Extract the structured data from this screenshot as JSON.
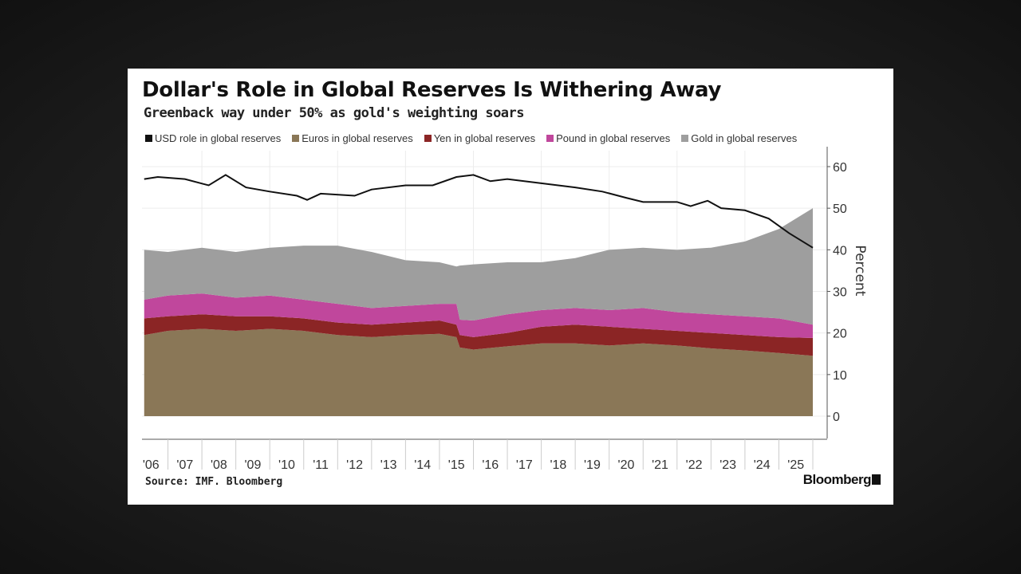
{
  "chart_data": {
    "type": "area",
    "stacked": true,
    "title": "Dollar's Role in Global Reserves Is Withering Away",
    "subtitle": "Greenback way under 50% as gold's weighting soars",
    "ylabel": "Percent",
    "xlabel": "",
    "ylim": [
      0,
      60
    ],
    "yticks": [
      0,
      10,
      20,
      30,
      40,
      50,
      60
    ],
    "xlim": [
      2006,
      2026
    ],
    "xtick_labels": [
      "'06",
      "'07",
      "'08",
      "'09",
      "'10",
      "'11",
      "'12",
      "'13",
      "'14",
      "'15",
      "'16",
      "'17",
      "'18",
      "'19",
      "'20",
      "'21",
      "'22",
      "'23",
      "'24",
      "'25"
    ],
    "grid": true,
    "legend_position": "top",
    "x": [
      2006.3,
      2007,
      2008,
      2009,
      2010,
      2011,
      2012,
      2013,
      2014,
      2015,
      2015.5,
      2015.6,
      2016,
      2017,
      2018,
      2019,
      2020,
      2021,
      2022,
      2023,
      2024,
      2025,
      2026
    ],
    "series": [
      {
        "name": "Euros in global reserves",
        "color": "#8a7757",
        "values": [
          19.5,
          20.5,
          21,
          20.5,
          21,
          20.5,
          19.5,
          19,
          19.5,
          19.8,
          19,
          16.5,
          16,
          16.8,
          17.5,
          17.5,
          17,
          17.5,
          17,
          16.3,
          15.8,
          15.2,
          14.5
        ]
      },
      {
        "name": "Yen in global reserves",
        "color": "#8b2525",
        "values": [
          4.0,
          3.5,
          3.5,
          3.5,
          3.0,
          3.0,
          3.0,
          3.0,
          3.0,
          3.2,
          3.0,
          3.0,
          3.0,
          3.2,
          4.0,
          4.5,
          4.5,
          3.5,
          3.5,
          3.7,
          3.7,
          3.8,
          4.3
        ]
      },
      {
        "name": "Pound in global reserves",
        "color": "#c0479c",
        "values": [
          4.5,
          5.0,
          5.0,
          4.5,
          5.0,
          4.5,
          4.5,
          4.0,
          4.0,
          4.0,
          5.0,
          3.7,
          4.0,
          4.5,
          4.0,
          4.0,
          4.0,
          5.0,
          4.5,
          4.5,
          4.5,
          4.5,
          3.2
        ]
      },
      {
        "name": "Gold in global reserves",
        "color": "#9e9e9e",
        "values": [
          12.0,
          10.5,
          11.0,
          11.0,
          11.5,
          13.0,
          14.0,
          13.5,
          11.0,
          10.0,
          9.0,
          13.0,
          13.5,
          12.5,
          11.5,
          12.0,
          14.5,
          14.5,
          15.0,
          16.0,
          18.0,
          21.5,
          28.0
        ]
      }
    ],
    "line_series": {
      "name": "USD role in global reserves",
      "color": "#111111",
      "x": [
        2006.3,
        2006.7,
        2007.5,
        2008.2,
        2008.7,
        2009.3,
        2010,
        2010.8,
        2011.1,
        2011.5,
        2012.5,
        2013,
        2014,
        2014.8,
        2015.5,
        2016,
        2016.5,
        2017,
        2018,
        2019,
        2019.8,
        2020.5,
        2021,
        2022,
        2022.4,
        2022.9,
        2023.3,
        2024,
        2024.7,
        2025.3,
        2026
      ],
      "values": [
        57,
        57.5,
        57,
        55.5,
        58,
        55,
        54,
        53,
        52,
        53.5,
        53,
        54.5,
        55.5,
        55.5,
        57.5,
        58,
        56.5,
        57,
        56,
        55,
        54,
        52.5,
        51.5,
        51.5,
        50.5,
        51.8,
        50,
        49.5,
        47.5,
        44,
        40.5
      ]
    },
    "legend_order": [
      "USD role in global reserves",
      "Euros in global reserves",
      "Yen in global reserves",
      "Pound in global reserves",
      "Gold in global reserves"
    ]
  },
  "footer": {
    "source": "Source: IMF. Bloomberg",
    "brand": "Bloomberg"
  }
}
